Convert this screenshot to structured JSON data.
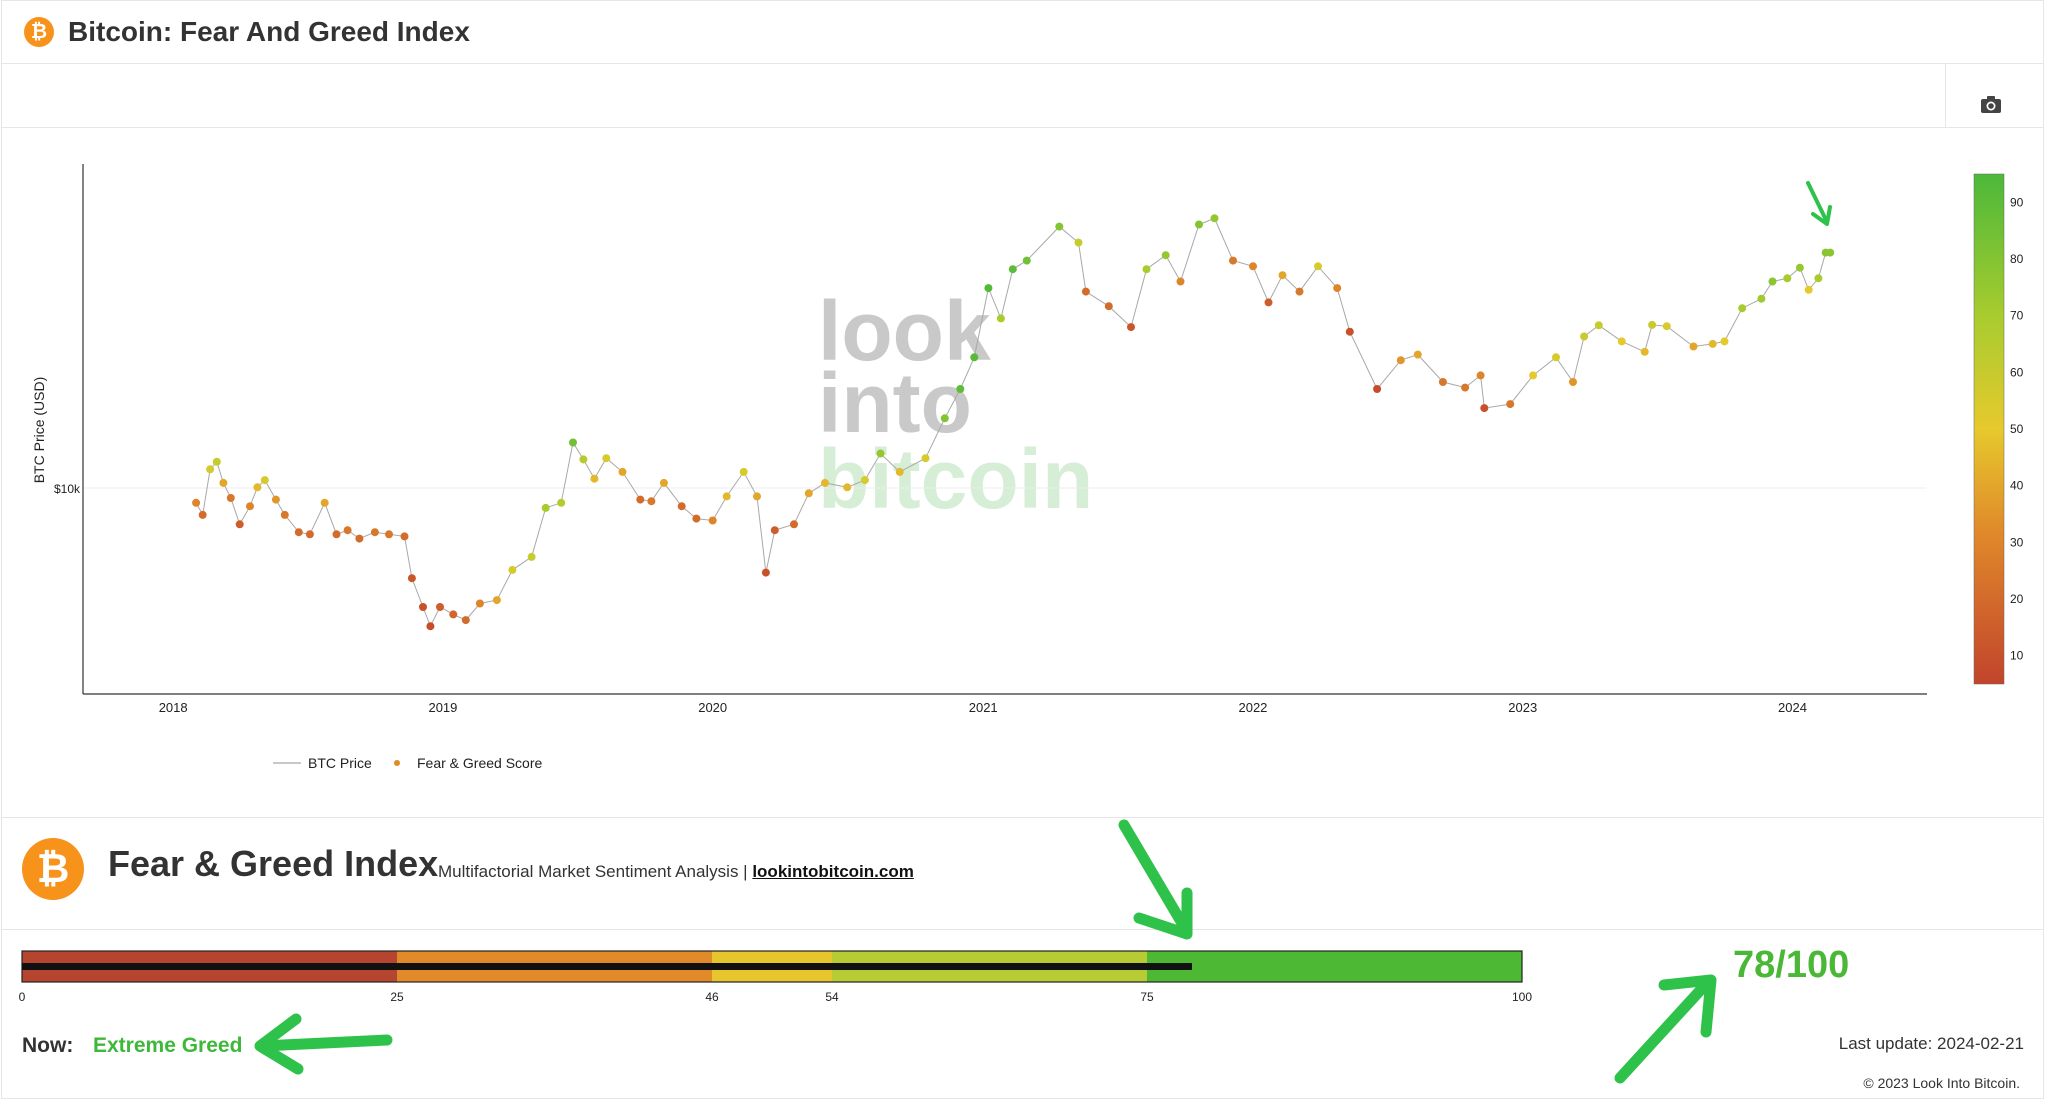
{
  "header": {
    "title": "Bitcoin: Fear And Greed Index",
    "logo_glyph": "₿"
  },
  "toolbar": {
    "camera_icon": "camera-icon"
  },
  "watermark": {
    "line1": "look",
    "line2": "into",
    "line3": "bitcoin"
  },
  "chart_data": {
    "type": "scatter",
    "title": "Bitcoin: Fear And Greed Index",
    "ylabel": "BTC Price (USD)",
    "xlabel": "",
    "y_scale": "log",
    "y_ticks": [
      {
        "value": 10000,
        "label": "$10k"
      }
    ],
    "x_ticks": [
      "2018",
      "2019",
      "2020",
      "2021",
      "2022",
      "2023",
      "2024"
    ],
    "x_range": [
      "2017-09-01",
      "2024-07-01"
    ],
    "y_range": [
      2000,
      100000
    ],
    "legend": {
      "placement": "bottom-left",
      "entries": [
        "BTC Price",
        "Fear & Greed Score"
      ]
    },
    "colorbar": {
      "ticks": [
        10,
        20,
        30,
        40,
        50,
        60,
        70,
        80,
        90
      ],
      "range": [
        5,
        95
      ],
      "colors": [
        "#c2442c",
        "#e08a2a",
        "#e6c92d",
        "#a8cc2e",
        "#4cb83a"
      ]
    },
    "series": [
      {
        "name": "BTC Price",
        "points": [
          [
            "2018-02-01",
            8200,
            30
          ],
          [
            "2018-02-10",
            7500,
            20
          ],
          [
            "2018-02-20",
            10500,
            55
          ],
          [
            "2018-03-01",
            11100,
            60
          ],
          [
            "2018-03-10",
            9500,
            40
          ],
          [
            "2018-03-20",
            8500,
            25
          ],
          [
            "2018-04-01",
            7000,
            15
          ],
          [
            "2018-04-15",
            8000,
            30
          ],
          [
            "2018-04-25",
            9200,
            45
          ],
          [
            "2018-05-05",
            9700,
            55
          ],
          [
            "2018-05-20",
            8400,
            35
          ],
          [
            "2018-06-01",
            7500,
            25
          ],
          [
            "2018-06-20",
            6600,
            20
          ],
          [
            "2018-07-05",
            6500,
            20
          ],
          [
            "2018-07-25",
            8200,
            40
          ],
          [
            "2018-08-10",
            6500,
            20
          ],
          [
            "2018-08-25",
            6700,
            25
          ],
          [
            "2018-09-10",
            6300,
            20
          ],
          [
            "2018-10-01",
            6600,
            25
          ],
          [
            "2018-10-20",
            6500,
            25
          ],
          [
            "2018-11-10",
            6400,
            20
          ],
          [
            "2018-11-20",
            4700,
            12
          ],
          [
            "2018-12-05",
            3800,
            10
          ],
          [
            "2018-12-15",
            3300,
            8
          ],
          [
            "2018-12-28",
            3800,
            15
          ],
          [
            "2019-01-15",
            3600,
            18
          ],
          [
            "2019-02-01",
            3450,
            20
          ],
          [
            "2019-02-20",
            3900,
            30
          ],
          [
            "2019-03-15",
            4000,
            40
          ],
          [
            "2019-04-05",
            5000,
            55
          ],
          [
            "2019-05-01",
            5500,
            60
          ],
          [
            "2019-05-20",
            7900,
            70
          ],
          [
            "2019-06-10",
            8200,
            65
          ],
          [
            "2019-06-26",
            12800,
            85
          ],
          [
            "2019-07-10",
            11300,
            65
          ],
          [
            "2019-07-25",
            9800,
            45
          ],
          [
            "2019-08-10",
            11400,
            55
          ],
          [
            "2019-09-01",
            10300,
            40
          ],
          [
            "2019-09-25",
            8400,
            20
          ],
          [
            "2019-10-10",
            8300,
            25
          ],
          [
            "2019-10-27",
            9500,
            40
          ],
          [
            "2019-11-20",
            8000,
            20
          ],
          [
            "2019-12-10",
            7300,
            20
          ],
          [
            "2020-01-01",
            7200,
            30
          ],
          [
            "2020-01-20",
            8600,
            45
          ],
          [
            "2020-02-12",
            10300,
            55
          ],
          [
            "2020-03-01",
            8600,
            40
          ],
          [
            "2020-03-13",
            4900,
            10
          ],
          [
            "2020-03-25",
            6700,
            15
          ],
          [
            "2020-04-20",
            7000,
            20
          ],
          [
            "2020-05-10",
            8800,
            40
          ],
          [
            "2020-06-01",
            9500,
            45
          ],
          [
            "2020-07-01",
            9200,
            45
          ],
          [
            "2020-07-25",
            9700,
            55
          ],
          [
            "2020-08-15",
            11800,
            75
          ],
          [
            "2020-09-10",
            10300,
            45
          ],
          [
            "2020-10-15",
            11400,
            55
          ],
          [
            "2020-11-10",
            15300,
            80
          ],
          [
            "2020-12-01",
            19000,
            90
          ],
          [
            "2020-12-20",
            24000,
            92
          ],
          [
            "2021-01-08",
            40000,
            93
          ],
          [
            "2021-01-25",
            32000,
            70
          ],
          [
            "2021-02-10",
            46000,
            90
          ],
          [
            "2021-03-01",
            49000,
            85
          ],
          [
            "2021-04-14",
            63000,
            80
          ],
          [
            "2021-05-10",
            56000,
            60
          ],
          [
            "2021-05-20",
            39000,
            20
          ],
          [
            "2021-06-20",
            35000,
            20
          ],
          [
            "2021-07-20",
            30000,
            12
          ],
          [
            "2021-08-10",
            46000,
            70
          ],
          [
            "2021-09-05",
            51000,
            75
          ],
          [
            "2021-09-25",
            42000,
            30
          ],
          [
            "2021-10-20",
            64000,
            80
          ],
          [
            "2021-11-10",
            67000,
            75
          ],
          [
            "2021-12-05",
            49000,
            25
          ],
          [
            "2022-01-01",
            47000,
            30
          ],
          [
            "2022-01-22",
            36000,
            15
          ],
          [
            "2022-02-10",
            44000,
            40
          ],
          [
            "2022-03-05",
            39000,
            25
          ],
          [
            "2022-03-30",
            47000,
            55
          ],
          [
            "2022-04-25",
            40000,
            30
          ],
          [
            "2022-05-12",
            29000,
            10
          ],
          [
            "2022-06-18",
            19000,
            8
          ],
          [
            "2022-07-20",
            23500,
            35
          ],
          [
            "2022-08-12",
            24500,
            40
          ],
          [
            "2022-09-15",
            20000,
            25
          ],
          [
            "2022-10-15",
            19200,
            25
          ],
          [
            "2022-11-05",
            21000,
            30
          ],
          [
            "2022-11-10",
            16500,
            10
          ],
          [
            "2022-12-15",
            17000,
            25
          ],
          [
            "2023-01-15",
            21000,
            50
          ],
          [
            "2023-02-15",
            24000,
            55
          ],
          [
            "2023-03-10",
            20000,
            35
          ],
          [
            "2023-03-25",
            28000,
            60
          ],
          [
            "2023-04-14",
            30400,
            60
          ],
          [
            "2023-05-15",
            27000,
            50
          ],
          [
            "2023-06-15",
            25000,
            45
          ],
          [
            "2023-06-25",
            30500,
            60
          ],
          [
            "2023-07-15",
            30200,
            55
          ],
          [
            "2023-08-20",
            26000,
            40
          ],
          [
            "2023-09-15",
            26500,
            45
          ],
          [
            "2023-10-01",
            27000,
            50
          ],
          [
            "2023-10-25",
            34500,
            70
          ],
          [
            "2023-11-20",
            37000,
            72
          ],
          [
            "2023-12-05",
            42000,
            78
          ],
          [
            "2023-12-25",
            43000,
            70
          ],
          [
            "2024-01-11",
            46500,
            75
          ],
          [
            "2024-01-23",
            39500,
            50
          ],
          [
            "2024-02-05",
            43000,
            70
          ],
          [
            "2024-02-15",
            52000,
            78
          ],
          [
            "2024-02-21",
            52000,
            78
          ]
        ]
      },
      {
        "name": "Fear & Greed Score",
        "values_from": "third element of each BTC Price point"
      }
    ]
  },
  "panel": {
    "logo_glyph": "₿",
    "title": "Fear & Greed Index",
    "subtitle": "Multifactorial Market Sentiment Analysis |",
    "link": "lookintobitcoin.com",
    "gauge": {
      "min": 0,
      "max": 100,
      "value": 78,
      "ticks": [
        0,
        25,
        46,
        54,
        75,
        100
      ],
      "segments": [
        {
          "from": 0,
          "to": 25,
          "color": "#b5452e"
        },
        {
          "from": 25,
          "to": 46,
          "color": "#e08a2a"
        },
        {
          "from": 46,
          "to": 54,
          "color": "#e6c52d"
        },
        {
          "from": 54,
          "to": 75,
          "color": "#b7cc34"
        },
        {
          "from": 75,
          "to": 100,
          "color": "#4cb833"
        }
      ]
    },
    "now_label": "Now:",
    "now_value": "Extreme Greed",
    "score_text": "78/100",
    "last_update": "Last update: 2024-02-21",
    "copyright": "© 2023 Look Into Bitcoin."
  },
  "annotation_color": "#2fc24a"
}
